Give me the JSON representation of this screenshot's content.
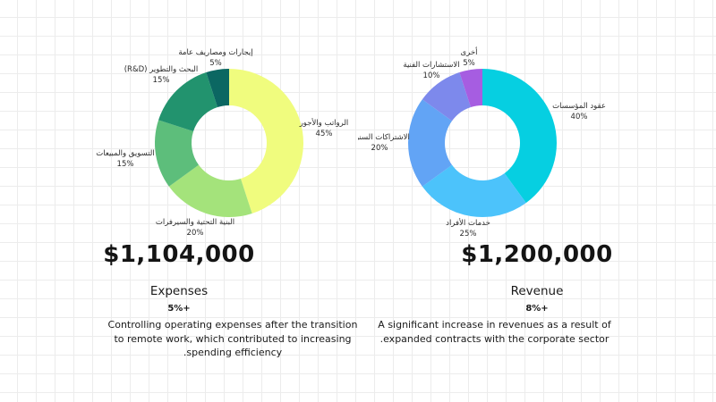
{
  "chart_data": [
    {
      "type": "pie",
      "donut": true,
      "title": "Expenses",
      "total": "$1,104,000",
      "change": "+5%",
      "description": "Controlling operating expenses after the transition to remote work, which contributed to increasing spending efficiency.",
      "slices": [
        {
          "label": "الرواتب والأجور",
          "pct_label": "45%",
          "value": 45,
          "color": "#f0fc7e"
        },
        {
          "label": "البنية التحتية والسيرفرات",
          "pct_label": "20%",
          "value": 20,
          "color": "#a4e37b"
        },
        {
          "label": "التسويق والمبيعات",
          "pct_label": "15%",
          "value": 15,
          "color": "#5dbe7b"
        },
        {
          "label": "البحث والتطوير (R&D)",
          "pct_label": "15%",
          "value": 15,
          "color": "#22936e"
        },
        {
          "label": "إيجارات ومصاريف عامة",
          "pct_label": "5%",
          "value": 5,
          "color": "#0b6762"
        }
      ]
    },
    {
      "type": "pie",
      "donut": true,
      "title": "Revenue",
      "total": "$1,200,000",
      "change": "+8%",
      "description": "A significant increase in revenues as a result of expanded contracts with the corporate sector.",
      "slices": [
        {
          "label": "عقود المؤسسات",
          "pct_label": "40%",
          "value": 40,
          "color": "#06cfe1"
        },
        {
          "label": "خدمات الأفراد",
          "pct_label": "25%",
          "value": 25,
          "color": "#4cc3fb"
        },
        {
          "label": "الاشتراكات السنوية",
          "pct_label": "20%",
          "value": 20,
          "color": "#62a4f5"
        },
        {
          "label": "الاستشارات الفنية",
          "pct_label": "10%",
          "value": 10,
          "color": "#7d89ec"
        },
        {
          "label": "أخرى",
          "pct_label": "5%",
          "value": 5,
          "color": "#a65de1"
        }
      ]
    }
  ]
}
